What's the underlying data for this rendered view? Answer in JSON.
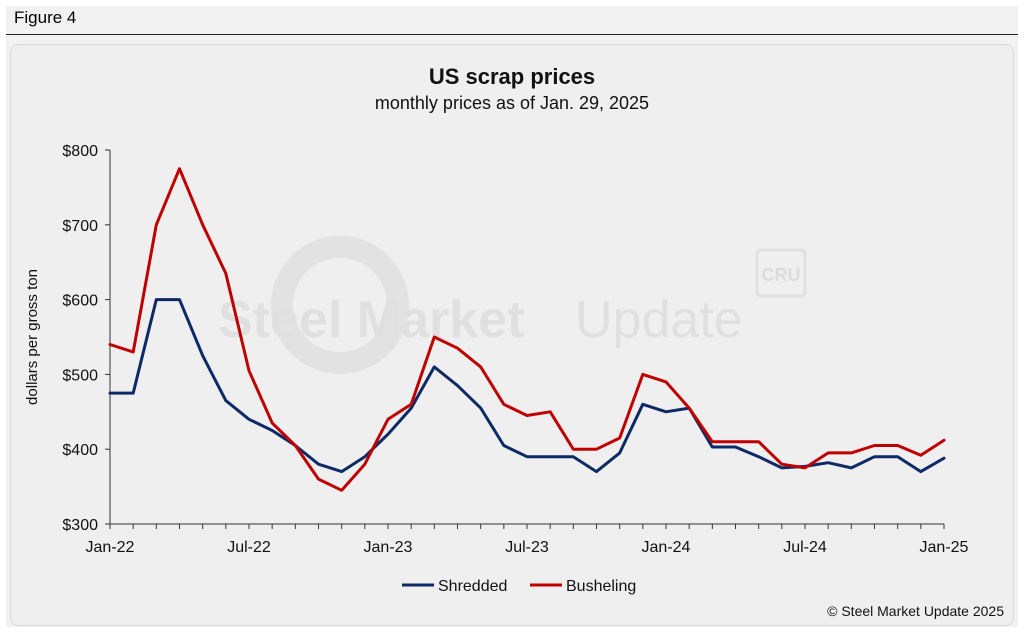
{
  "figure_label": "Figure 4",
  "credit": "© Steel Market Update 2025",
  "watermark": {
    "text_bold": "Steel Market",
    "text_light": "Update",
    "badge": "CRU"
  },
  "colors": {
    "shredded": "#0d2a66",
    "busheling": "#c00000",
    "axis": "#333333",
    "text": "#111111"
  },
  "chart_data": {
    "type": "line",
    "title": "US scrap prices",
    "subtitle": "monthly prices as of Jan. 29, 2025",
    "xlabel": "",
    "ylabel": "dollars per  gross ton",
    "ylim": [
      300,
      800
    ],
    "yticks": [
      300,
      400,
      500,
      600,
      700,
      800
    ],
    "ytick_labels": [
      "$300",
      "$400",
      "$500",
      "$600",
      "$700",
      "$800"
    ],
    "x_ticks": [
      {
        "index": 0,
        "label": "Jan-22"
      },
      {
        "index": 6,
        "label": "Jul-22"
      },
      {
        "index": 12,
        "label": "Jan-23"
      },
      {
        "index": 18,
        "label": "Jul-23"
      },
      {
        "index": 24,
        "label": "Jan-24"
      },
      {
        "index": 30,
        "label": "Jul-24"
      },
      {
        "index": 36,
        "label": "Jan-25"
      }
    ],
    "n_points": 37,
    "legend_position": "bottom-center",
    "grid": false,
    "series": [
      {
        "name": "Shredded",
        "color": "#0d2a66",
        "values": [
          475,
          475,
          600,
          600,
          525,
          465,
          440,
          425,
          405,
          380,
          370,
          390,
          420,
          455,
          510,
          485,
          455,
          405,
          390,
          390,
          390,
          370,
          395,
          460,
          450,
          455,
          403,
          403,
          390,
          375,
          377,
          382,
          375,
          390,
          390,
          370,
          388
        ]
      },
      {
        "name": "Busheling",
        "color": "#c00000",
        "values": [
          540,
          530,
          700,
          775,
          700,
          635,
          505,
          435,
          405,
          360,
          345,
          380,
          440,
          460,
          550,
          535,
          510,
          460,
          445,
          450,
          400,
          400,
          415,
          500,
          490,
          455,
          410,
          410,
          410,
          380,
          375,
          395,
          395,
          405,
          405,
          392,
          412
        ]
      }
    ]
  }
}
